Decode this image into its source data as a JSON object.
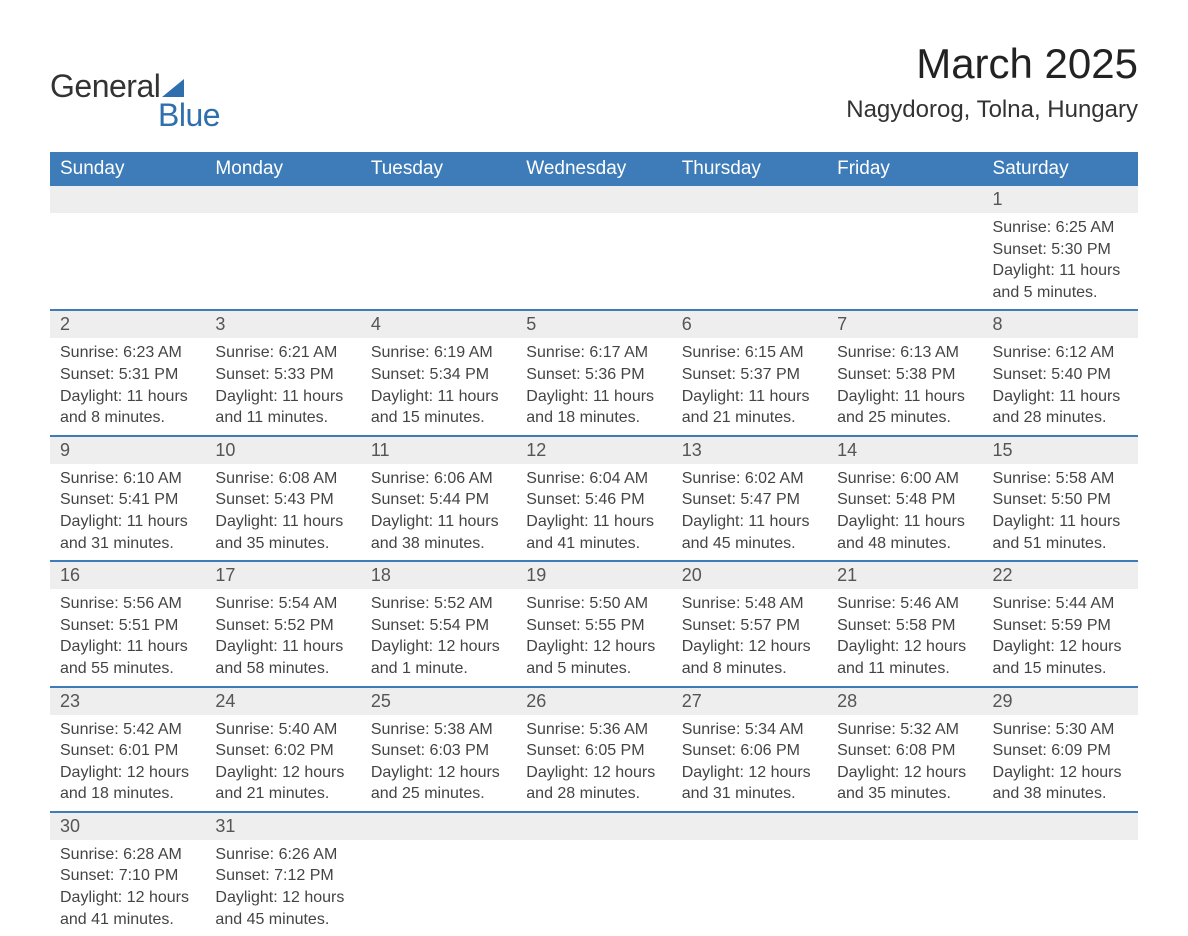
{
  "brand": {
    "word1": "General",
    "word2": "Blue",
    "accent": "#2f6fad"
  },
  "title": "March 2025",
  "location": "Nagydorog, Tolna, Hungary",
  "colors": {
    "header_bg": "#3d7cb8",
    "header_text": "#ffffff",
    "daynum_bg": "#eeeeee",
    "daynum_text": "#555555",
    "body_text": "#444444",
    "row_divider": "#3d7cb8",
    "page_bg": "#ffffff"
  },
  "typography": {
    "title_fontsize": 42,
    "location_fontsize": 24,
    "weekday_fontsize": 19,
    "daynum_fontsize": 18,
    "cell_fontsize": 16,
    "font_family": "Arial"
  },
  "weekdays": [
    "Sunday",
    "Monday",
    "Tuesday",
    "Wednesday",
    "Thursday",
    "Friday",
    "Saturday"
  ],
  "weeks": [
    [
      null,
      null,
      null,
      null,
      null,
      null,
      {
        "n": "1",
        "sr": "Sunrise: 6:25 AM",
        "ss": "Sunset: 5:30 PM",
        "dl1": "Daylight: 11 hours",
        "dl2": "and 5 minutes."
      }
    ],
    [
      {
        "n": "2",
        "sr": "Sunrise: 6:23 AM",
        "ss": "Sunset: 5:31 PM",
        "dl1": "Daylight: 11 hours",
        "dl2": "and 8 minutes."
      },
      {
        "n": "3",
        "sr": "Sunrise: 6:21 AM",
        "ss": "Sunset: 5:33 PM",
        "dl1": "Daylight: 11 hours",
        "dl2": "and 11 minutes."
      },
      {
        "n": "4",
        "sr": "Sunrise: 6:19 AM",
        "ss": "Sunset: 5:34 PM",
        "dl1": "Daylight: 11 hours",
        "dl2": "and 15 minutes."
      },
      {
        "n": "5",
        "sr": "Sunrise: 6:17 AM",
        "ss": "Sunset: 5:36 PM",
        "dl1": "Daylight: 11 hours",
        "dl2": "and 18 minutes."
      },
      {
        "n": "6",
        "sr": "Sunrise: 6:15 AM",
        "ss": "Sunset: 5:37 PM",
        "dl1": "Daylight: 11 hours",
        "dl2": "and 21 minutes."
      },
      {
        "n": "7",
        "sr": "Sunrise: 6:13 AM",
        "ss": "Sunset: 5:38 PM",
        "dl1": "Daylight: 11 hours",
        "dl2": "and 25 minutes."
      },
      {
        "n": "8",
        "sr": "Sunrise: 6:12 AM",
        "ss": "Sunset: 5:40 PM",
        "dl1": "Daylight: 11 hours",
        "dl2": "and 28 minutes."
      }
    ],
    [
      {
        "n": "9",
        "sr": "Sunrise: 6:10 AM",
        "ss": "Sunset: 5:41 PM",
        "dl1": "Daylight: 11 hours",
        "dl2": "and 31 minutes."
      },
      {
        "n": "10",
        "sr": "Sunrise: 6:08 AM",
        "ss": "Sunset: 5:43 PM",
        "dl1": "Daylight: 11 hours",
        "dl2": "and 35 minutes."
      },
      {
        "n": "11",
        "sr": "Sunrise: 6:06 AM",
        "ss": "Sunset: 5:44 PM",
        "dl1": "Daylight: 11 hours",
        "dl2": "and 38 minutes."
      },
      {
        "n": "12",
        "sr": "Sunrise: 6:04 AM",
        "ss": "Sunset: 5:46 PM",
        "dl1": "Daylight: 11 hours",
        "dl2": "and 41 minutes."
      },
      {
        "n": "13",
        "sr": "Sunrise: 6:02 AM",
        "ss": "Sunset: 5:47 PM",
        "dl1": "Daylight: 11 hours",
        "dl2": "and 45 minutes."
      },
      {
        "n": "14",
        "sr": "Sunrise: 6:00 AM",
        "ss": "Sunset: 5:48 PM",
        "dl1": "Daylight: 11 hours",
        "dl2": "and 48 minutes."
      },
      {
        "n": "15",
        "sr": "Sunrise: 5:58 AM",
        "ss": "Sunset: 5:50 PM",
        "dl1": "Daylight: 11 hours",
        "dl2": "and 51 minutes."
      }
    ],
    [
      {
        "n": "16",
        "sr": "Sunrise: 5:56 AM",
        "ss": "Sunset: 5:51 PM",
        "dl1": "Daylight: 11 hours",
        "dl2": "and 55 minutes."
      },
      {
        "n": "17",
        "sr": "Sunrise: 5:54 AM",
        "ss": "Sunset: 5:52 PM",
        "dl1": "Daylight: 11 hours",
        "dl2": "and 58 minutes."
      },
      {
        "n": "18",
        "sr": "Sunrise: 5:52 AM",
        "ss": "Sunset: 5:54 PM",
        "dl1": "Daylight: 12 hours",
        "dl2": "and 1 minute."
      },
      {
        "n": "19",
        "sr": "Sunrise: 5:50 AM",
        "ss": "Sunset: 5:55 PM",
        "dl1": "Daylight: 12 hours",
        "dl2": "and 5 minutes."
      },
      {
        "n": "20",
        "sr": "Sunrise: 5:48 AM",
        "ss": "Sunset: 5:57 PM",
        "dl1": "Daylight: 12 hours",
        "dl2": "and 8 minutes."
      },
      {
        "n": "21",
        "sr": "Sunrise: 5:46 AM",
        "ss": "Sunset: 5:58 PM",
        "dl1": "Daylight: 12 hours",
        "dl2": "and 11 minutes."
      },
      {
        "n": "22",
        "sr": "Sunrise: 5:44 AM",
        "ss": "Sunset: 5:59 PM",
        "dl1": "Daylight: 12 hours",
        "dl2": "and 15 minutes."
      }
    ],
    [
      {
        "n": "23",
        "sr": "Sunrise: 5:42 AM",
        "ss": "Sunset: 6:01 PM",
        "dl1": "Daylight: 12 hours",
        "dl2": "and 18 minutes."
      },
      {
        "n": "24",
        "sr": "Sunrise: 5:40 AM",
        "ss": "Sunset: 6:02 PM",
        "dl1": "Daylight: 12 hours",
        "dl2": "and 21 minutes."
      },
      {
        "n": "25",
        "sr": "Sunrise: 5:38 AM",
        "ss": "Sunset: 6:03 PM",
        "dl1": "Daylight: 12 hours",
        "dl2": "and 25 minutes."
      },
      {
        "n": "26",
        "sr": "Sunrise: 5:36 AM",
        "ss": "Sunset: 6:05 PM",
        "dl1": "Daylight: 12 hours",
        "dl2": "and 28 minutes."
      },
      {
        "n": "27",
        "sr": "Sunrise: 5:34 AM",
        "ss": "Sunset: 6:06 PM",
        "dl1": "Daylight: 12 hours",
        "dl2": "and 31 minutes."
      },
      {
        "n": "28",
        "sr": "Sunrise: 5:32 AM",
        "ss": "Sunset: 6:08 PM",
        "dl1": "Daylight: 12 hours",
        "dl2": "and 35 minutes."
      },
      {
        "n": "29",
        "sr": "Sunrise: 5:30 AM",
        "ss": "Sunset: 6:09 PM",
        "dl1": "Daylight: 12 hours",
        "dl2": "and 38 minutes."
      }
    ],
    [
      {
        "n": "30",
        "sr": "Sunrise: 6:28 AM",
        "ss": "Sunset: 7:10 PM",
        "dl1": "Daylight: 12 hours",
        "dl2": "and 41 minutes."
      },
      {
        "n": "31",
        "sr": "Sunrise: 6:26 AM",
        "ss": "Sunset: 7:12 PM",
        "dl1": "Daylight: 12 hours",
        "dl2": "and 45 minutes."
      },
      null,
      null,
      null,
      null,
      null
    ]
  ]
}
